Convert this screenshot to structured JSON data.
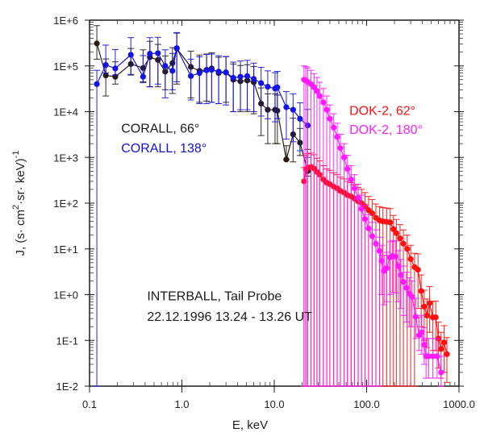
{
  "chart_data": {
    "type": "scatter",
    "title": "",
    "xlabel": "E, keV",
    "ylabel": "J, (s·cm²·sr·keV)⁻¹",
    "ylabel_parts": {
      "main": "J, (s· cm",
      "sup1": "2",
      "mid": "·sr· keV)",
      "sup2": "-1"
    },
    "xscale": "log",
    "yscale": "log",
    "xlim": [
      0.1,
      1000.0
    ],
    "ylim": [
      0.01,
      1000000
    ],
    "x_ticks": [
      0.1,
      1.0,
      10.0,
      100.0,
      1000.0
    ],
    "x_tick_labels": [
      "0.1",
      "1.0",
      "10.0",
      "100.0",
      "1000.0"
    ],
    "y_ticks": [
      0.01,
      0.1,
      1,
      10,
      100,
      1000,
      10000,
      100000,
      1000000
    ],
    "y_tick_labels": [
      "1E-2",
      "1E-1",
      "1E+0",
      "1E+1",
      "1E+2",
      "1E+3",
      "1E+4",
      "1E+5",
      "1E+6"
    ],
    "grid": false,
    "annotations": [
      {
        "id": "corall66",
        "text": "CORALL, 66°",
        "color": "#1a1a1a",
        "x": 0.22,
        "y": 3500
      },
      {
        "id": "corall138",
        "text": "CORALL, 138°",
        "color": "#1010e0",
        "x": 0.22,
        "y": 1300
      },
      {
        "id": "dok62",
        "text": "DOK-2,  62°",
        "color": "#ff1010",
        "x": 65,
        "y": 8500
      },
      {
        "id": "dok180",
        "text": "DOK-2, 180°",
        "color": "#ff20ff",
        "x": 65,
        "y": 3300
      },
      {
        "id": "mission",
        "text": "INTERBALL, Tail Probe",
        "color": "#1a1a1a",
        "x": 0.42,
        "y": 0.75
      },
      {
        "id": "time",
        "text": "22.12.1996  13.24 - 13.26 UT",
        "color": "#1a1a1a",
        "x": 0.42,
        "y": 0.27
      }
    ],
    "series": [
      {
        "name": "CORALL, 66°",
        "color": "#2a1a14",
        "x": [
          0.12,
          0.15,
          0.19,
          0.28,
          0.38,
          0.45,
          0.55,
          0.66,
          0.79,
          0.88,
          1.25,
          1.55,
          1.85,
          2.1,
          2.5,
          3.0,
          3.6,
          4.3,
          5.1,
          6.0,
          7.2,
          8.5,
          10.2,
          10.8,
          13.5,
          16.0,
          19.0,
          23.0
        ],
        "y": [
          310000,
          62000,
          58000,
          110000,
          90000,
          155000,
          135000,
          75000,
          115000,
          240000,
          95000,
          78000,
          82000,
          88000,
          70000,
          72000,
          50000,
          46000,
          48000,
          44000,
          15000,
          11000,
          11000,
          10500,
          900,
          3200,
          2100,
          500
        ],
        "err_lo": [
          170000,
          40000,
          18000,
          47000,
          45000,
          120000,
          100000,
          45000,
          90000,
          200000,
          75000,
          62000,
          65000,
          72000,
          55000,
          56000,
          40000,
          36000,
          38000,
          35000,
          12000,
          9000,
          9000,
          8500,
          0,
          2400,
          1000,
          110
        ],
        "err_hi": [
          450000,
          80000,
          65000,
          130000,
          135000,
          190000,
          160000,
          90000,
          135000,
          280000,
          115000,
          95000,
          100000,
          105000,
          85000,
          88000,
          60000,
          56000,
          58000,
          53000,
          18000,
          13500,
          13500,
          12500,
          900,
          4000,
          2200,
          1000
        ]
      },
      {
        "name": "CORALL, 138°",
        "color": "#1414e6",
        "x": [
          0.12,
          0.15,
          0.19,
          0.28,
          0.38,
          0.45,
          0.55,
          0.66,
          0.79,
          0.88,
          1.25,
          1.55,
          1.85,
          2.1,
          2.5,
          3.0,
          3.6,
          4.3,
          5.1,
          6.0,
          7.2,
          8.5,
          10.2,
          10.8,
          13.5,
          16.0,
          19.0,
          23.0
        ],
        "y": [
          40000,
          105000,
          88000,
          175000,
          58000,
          185000,
          190000,
          100000,
          78000,
          245000,
          60000,
          70000,
          80000,
          82000,
          75000,
          72000,
          55000,
          58000,
          60000,
          52000,
          42000,
          35000,
          32000,
          34000,
          12500,
          11000,
          7000,
          5000
        ],
        "err_lo": [
          40000,
          35000,
          25000,
          110000,
          15000,
          150000,
          150000,
          80000,
          48000,
          200000,
          42000,
          55000,
          65000,
          66000,
          60000,
          58000,
          45000,
          47000,
          49000,
          42000,
          34000,
          28000,
          26000,
          27000,
          10000,
          8800,
          5600,
          4000
        ],
        "err_hi": [
          40000,
          180000,
          140000,
          240000,
          110000,
          230000,
          230000,
          125000,
          110000,
          290000,
          80000,
          88000,
          98000,
          100000,
          92000,
          88000,
          66000,
          70000,
          72000,
          63000,
          51000,
          43000,
          39000,
          42000,
          15000,
          13500,
          8600,
          6200
        ]
      },
      {
        "name": "DOK-2, 62°",
        "color": "#ff1010",
        "x": [
          21,
          22,
          23,
          25,
          27,
          29,
          31,
          34,
          37,
          40,
          44,
          48,
          52,
          57,
          62,
          68,
          74,
          81,
          88,
          96,
          105,
          115,
          126,
          138,
          150,
          165,
          180,
          195,
          210,
          230,
          250,
          275,
          300,
          330,
          360,
          390,
          420,
          450,
          480,
          520,
          560,
          600,
          640,
          690,
          740
        ],
        "y": [
          300,
          550,
          600,
          620,
          570,
          480,
          420,
          330,
          280,
          260,
          230,
          210,
          185,
          170,
          150,
          140,
          125,
          110,
          100,
          85,
          70,
          60,
          48,
          42,
          40,
          39,
          38,
          27,
          22,
          17,
          13,
          10,
          6,
          4,
          3.5,
          1.2,
          0.55,
          0.35,
          0.65,
          0.32,
          0.32,
          0.11,
          0.065,
          0.09,
          0.05
        ],
        "err_lo": [
          300,
          550,
          600,
          620,
          570,
          480,
          420,
          330,
          280,
          260,
          230,
          210,
          185,
          170,
          150,
          140,
          125,
          110,
          100,
          85,
          70,
          60,
          48,
          42,
          40,
          39,
          38,
          27,
          22,
          17,
          13,
          10,
          6,
          4,
          3.0,
          1.0,
          0.45,
          0.28,
          0.5,
          0.26,
          0.26,
          0.085,
          0.05,
          0.07,
          0.038
        ],
        "err_hi": [
          300,
          550,
          600,
          620,
          570,
          480,
          420,
          330,
          280,
          260,
          230,
          210,
          185,
          170,
          150,
          140,
          125,
          110,
          100,
          85,
          70,
          60,
          48,
          42,
          40,
          39,
          38,
          27,
          22,
          17,
          13,
          10,
          6,
          4,
          4.3,
          1.5,
          0.7,
          0.45,
          0.85,
          0.4,
          0.4,
          0.14,
          0.085,
          0.12,
          0.065
        ]
      },
      {
        "name": "DOK-2, 180°",
        "color": "#ff1aff",
        "x": [
          21,
          22,
          23,
          25,
          27,
          29,
          31,
          34,
          37,
          40,
          44,
          48,
          52,
          57,
          62,
          68,
          74,
          81,
          88,
          96,
          105,
          115,
          126,
          138,
          145,
          155,
          165,
          178,
          190,
          205,
          220,
          235,
          250,
          270,
          290,
          310,
          340,
          370,
          395,
          420,
          440,
          470,
          520,
          580,
          640
        ],
        "y": [
          50000,
          48000,
          45000,
          40000,
          34000,
          28000,
          22000,
          16000,
          11000,
          7000,
          4500,
          2800,
          1600,
          1000,
          560,
          330,
          210,
          130,
          75,
          45,
          28,
          19,
          13,
          9,
          5.5,
          3.3,
          3.8,
          6.5,
          7.0,
          6.8,
          4.2,
          2.7,
          1.9,
          1.4,
          1.05,
          0.9,
          0.33,
          0.13,
          0.15,
          0.08,
          0.045,
          0.045,
          0.045,
          0.045,
          0.02
        ],
        "err_lo": [
          50000,
          48000,
          45000,
          40000,
          34000,
          28000,
          22000,
          16000,
          11000,
          7000,
          4500,
          2800,
          1600,
          1000,
          560,
          330,
          210,
          130,
          75,
          45,
          28,
          19,
          13,
          9,
          4.5,
          2.7,
          3.1,
          5.5,
          5.9,
          5.7,
          3.5,
          2.2,
          1.55,
          1.15,
          0.85,
          0.7,
          0.22,
          0.07,
          0.1,
          0.05,
          0.03,
          0.03,
          0.03,
          0.03,
          0.015
        ],
        "err_hi": [
          50000,
          48000,
          45000,
          40000,
          34000,
          28000,
          22000,
          16000,
          11000,
          7000,
          4500,
          2800,
          1600,
          1000,
          560,
          330,
          210,
          130,
          75,
          45,
          28,
          19,
          13,
          9,
          6.5,
          4.0,
          4.6,
          7.8,
          8.2,
          8.0,
          5.0,
          3.2,
          2.3,
          1.7,
          1.3,
          1.1,
          0.5,
          0.19,
          0.2,
          0.11,
          0.065,
          0.065,
          0.065,
          0.065,
          0.025
        ]
      }
    ]
  }
}
